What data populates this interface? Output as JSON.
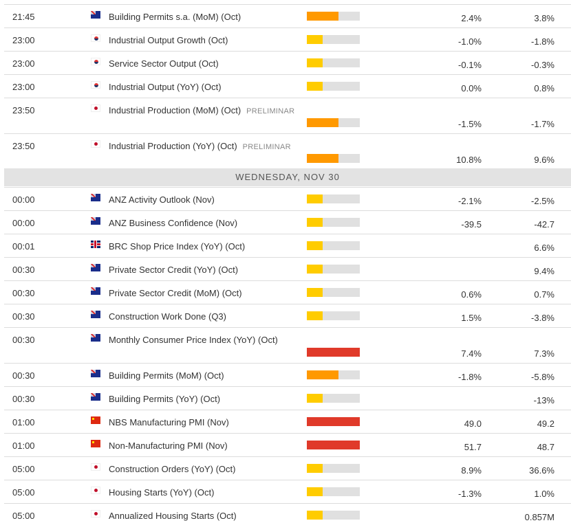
{
  "colors": {
    "low": "#ffcc00",
    "medium": "#ff9900",
    "high": "#e03a2a",
    "track": "#e0e0e0"
  },
  "day_header": "WEDNESDAY, NOV 30",
  "events_before": [
    {
      "time": "21:45",
      "country": "au",
      "name": "Building Permits s.a. (MoM) (Oct)",
      "tag": "",
      "impact": "medium",
      "actual": "2.4%",
      "previous": "3.8%"
    },
    {
      "time": "23:00",
      "country": "kr",
      "name": "Industrial Output Growth (Oct)",
      "tag": "",
      "impact": "low",
      "actual": "-1.0%",
      "previous": "-1.8%"
    },
    {
      "time": "23:00",
      "country": "kr",
      "name": "Service Sector Output (Oct)",
      "tag": "",
      "impact": "low",
      "actual": "-0.1%",
      "previous": "-0.3%"
    },
    {
      "time": "23:00",
      "country": "kr",
      "name": "Industrial Output (YoY) (Oct)",
      "tag": "",
      "impact": "low",
      "actual": "0.0%",
      "previous": "0.8%"
    },
    {
      "time": "23:50",
      "country": "jp",
      "name": "Industrial Production (MoM) (Oct)",
      "tag": "PRELIMINAR",
      "impact": "medium",
      "actual": "-1.5%",
      "previous": "-1.7%",
      "tall": true
    },
    {
      "time": "23:50",
      "country": "jp",
      "name": "Industrial Production (YoY) (Oct)",
      "tag": "PRELIMINAR",
      "impact": "medium",
      "actual": "10.8%",
      "previous": "9.6%",
      "tall": true
    }
  ],
  "events_after": [
    {
      "time": "00:00",
      "country": "au",
      "name": "ANZ Activity Outlook (Nov)",
      "tag": "",
      "impact": "low",
      "actual": "-2.1%",
      "previous": "-2.5%"
    },
    {
      "time": "00:00",
      "country": "au",
      "name": "ANZ Business Confidence (Nov)",
      "tag": "",
      "impact": "low",
      "actual": "-39.5",
      "previous": "-42.7"
    },
    {
      "time": "00:01",
      "country": "uk",
      "name": "BRC Shop Price Index (YoY) (Oct)",
      "tag": "",
      "impact": "low",
      "actual": "",
      "previous": "6.6%"
    },
    {
      "time": "00:30",
      "country": "au",
      "name": "Private Sector Credit (YoY) (Oct)",
      "tag": "",
      "impact": "low",
      "actual": "",
      "previous": "9.4%"
    },
    {
      "time": "00:30",
      "country": "au",
      "name": "Private Sector Credit (MoM) (Oct)",
      "tag": "",
      "impact": "low",
      "actual": "0.6%",
      "previous": "0.7%"
    },
    {
      "time": "00:30",
      "country": "au",
      "name": "Construction Work Done (Q3)",
      "tag": "",
      "impact": "low",
      "actual": "1.5%",
      "previous": "-3.8%"
    },
    {
      "time": "00:30",
      "country": "au",
      "name": "Monthly Consumer Price Index (YoY) (Oct)",
      "tag": "",
      "impact": "high",
      "actual": "7.4%",
      "previous": "7.3%",
      "tall": true
    },
    {
      "time": "00:30",
      "country": "au",
      "name": "Building Permits (MoM) (Oct)",
      "tag": "",
      "impact": "medium",
      "actual": "-1.8%",
      "previous": "-5.8%"
    },
    {
      "time": "00:30",
      "country": "au",
      "name": "Building Permits (YoY) (Oct)",
      "tag": "",
      "impact": "low",
      "actual": "",
      "previous": "-13%"
    },
    {
      "time": "01:00",
      "country": "cn",
      "name": "NBS Manufacturing PMI (Nov)",
      "tag": "",
      "impact": "high",
      "actual": "49.0",
      "previous": "49.2"
    },
    {
      "time": "01:00",
      "country": "cn",
      "name": "Non-Manufacturing PMI (Nov)",
      "tag": "",
      "impact": "high",
      "actual": "51.7",
      "previous": "48.7"
    },
    {
      "time": "05:00",
      "country": "jp",
      "name": "Construction Orders (YoY) (Oct)",
      "tag": "",
      "impact": "low",
      "actual": "8.9%",
      "previous": "36.6%"
    },
    {
      "time": "05:00",
      "country": "jp",
      "name": "Housing Starts (YoY) (Oct)",
      "tag": "",
      "impact": "low",
      "actual": "-1.3%",
      "previous": "1.0%"
    },
    {
      "time": "05:00",
      "country": "jp",
      "name": "Annualized Housing Starts (Oct)",
      "tag": "",
      "impact": "low",
      "actual": "",
      "previous": "0.857M"
    }
  ]
}
